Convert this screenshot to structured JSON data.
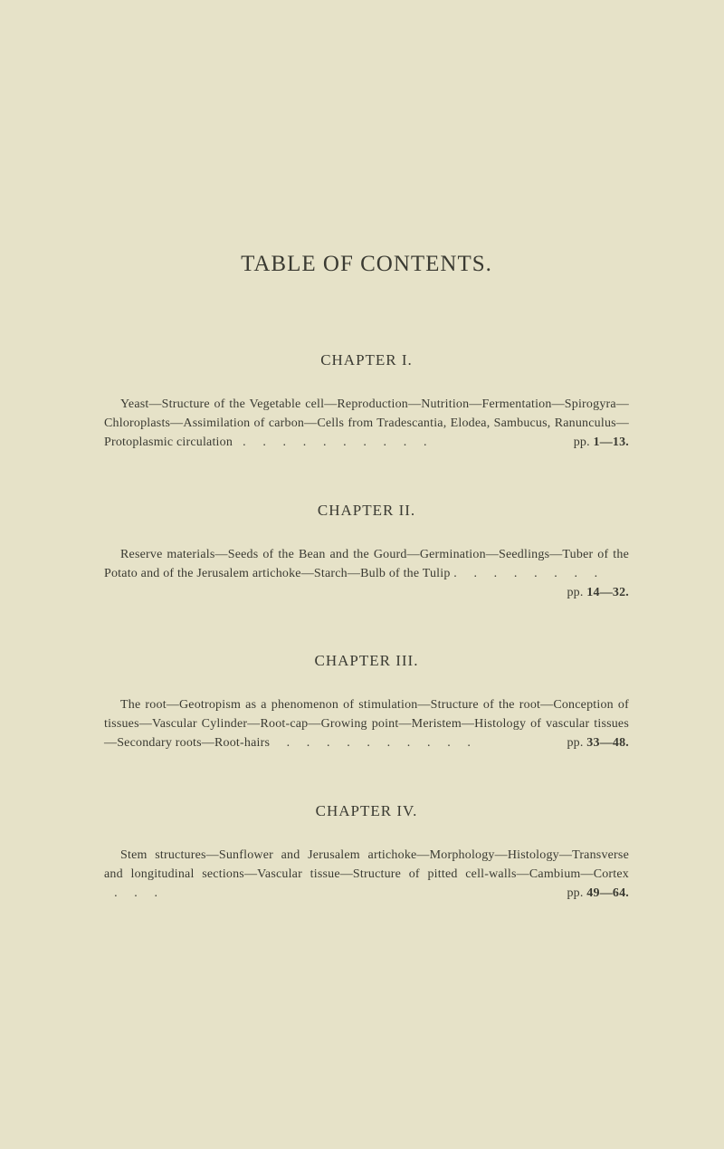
{
  "colors": {
    "background": "#e6e2c8",
    "text": "#3a3a32"
  },
  "title": "TABLE OF CONTENTS.",
  "chapter1": {
    "heading": "CHAPTER I.",
    "body": "Yeast—Structure of the Vegetable cell—Reproduction—Nutrition—Fermentation—Spirogyra—Chloroplasts—Assimilation of carbon—Cells from Tradescantia, Elodea, Sambucus, Ranunculus—Protoplasmic circulation",
    "dots": "   .     .     .     .     .     .     .     .     .     .",
    "pp_label": "pp. ",
    "pp_range": "1—13."
  },
  "chapter2": {
    "heading": "CHAPTER II.",
    "body": "Reserve materials—Seeds of the Bean and the Gourd—Germination—Seedlings—Tuber of the Potato and of the Jerusalem artichoke—Starch—Bulb of the Tulip .",
    "dots": "     .     .     .     .     .     .     .",
    "pp_label": "pp. ",
    "pp_range": "14—32."
  },
  "chapter3": {
    "heading": "CHAPTER III.",
    "body": "The root—Geotropism as a phenomenon of stimulation—Structure of the root—Conception of tissues—Vascular Cylinder—Root-cap—Growing point—Meristem—Histology of vascular tissues—Secondary roots—Root-hairs",
    "dots": "     .     .     .     .     .     .     .     .     .     .",
    "pp_label": "pp. ",
    "pp_range": "33—48."
  },
  "chapter4": {
    "heading": "CHAPTER IV.",
    "body": "Stem structures—Sunflower and Jerusalem artichoke—Morphology—Histology—Transverse and longitudinal sections—Vascular tissue—Structure of pitted cell-walls—Cambium—Cortex",
    "dots": "   .     .     .",
    "pp_label": "pp. ",
    "pp_range": "49—64."
  }
}
